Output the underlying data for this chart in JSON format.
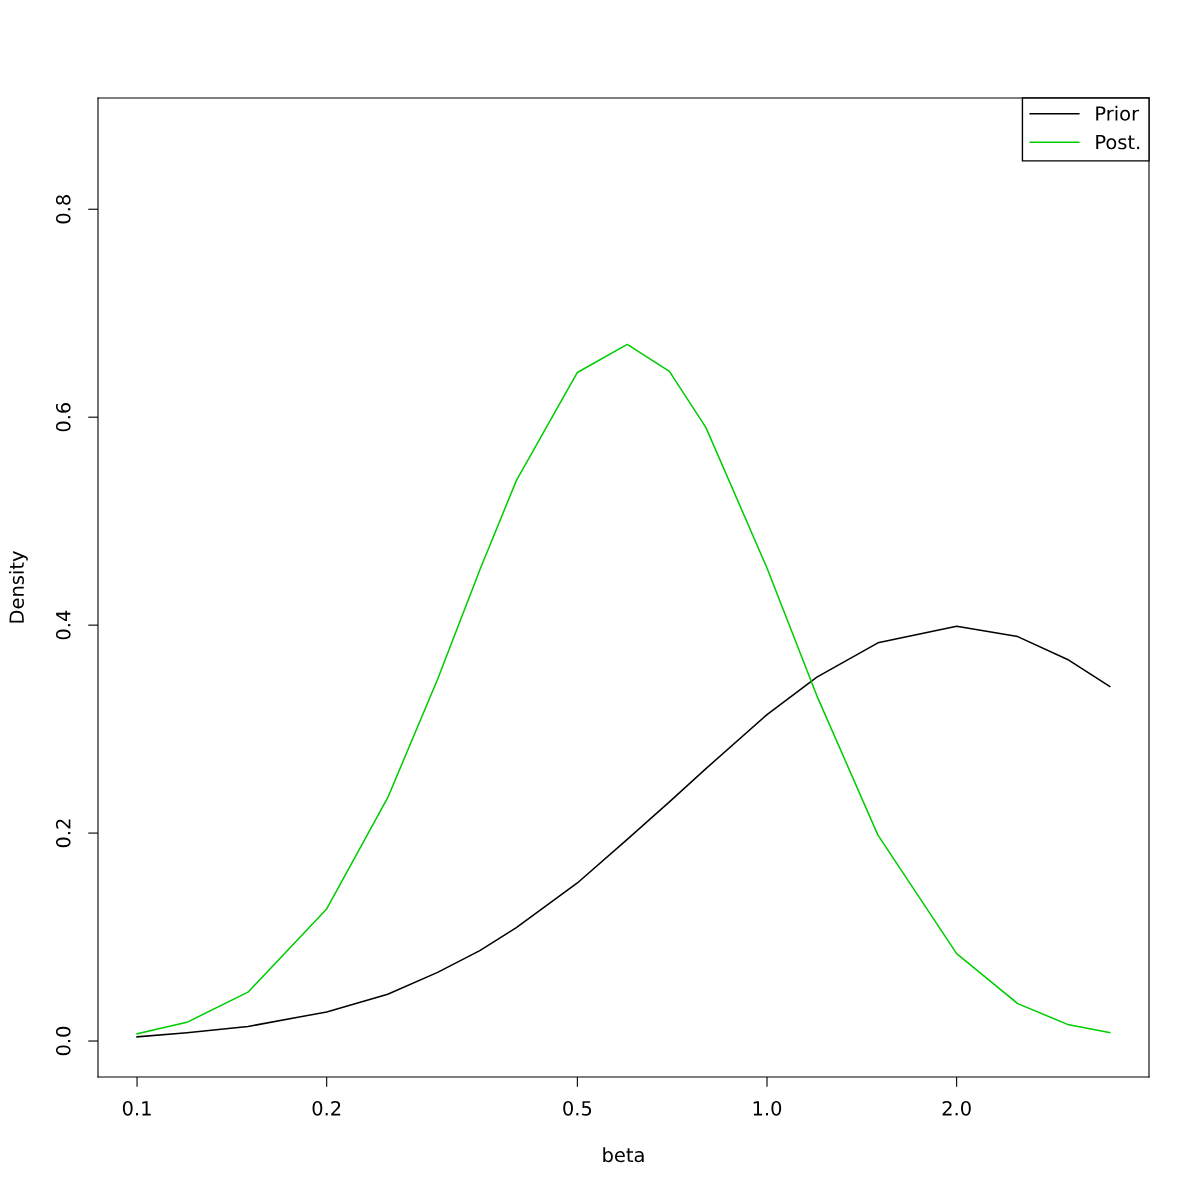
{
  "chart_data": {
    "type": "line",
    "xlabel": "beta",
    "ylabel": "Density",
    "log": "x",
    "x": [
      0.1,
      0.12,
      0.15,
      0.2,
      0.25,
      0.3,
      0.35,
      0.4,
      0.5,
      0.6,
      0.7,
      0.8,
      1.0,
      1.2,
      1.5,
      2.0,
      2.5,
      3.0,
      3.5
    ],
    "series": [
      {
        "name": "Prior",
        "color": "#000000",
        "values": [
          0.004,
          0.008,
          0.014,
          0.028,
          0.045,
          0.066,
          0.087,
          0.109,
          0.152,
          0.194,
          0.23,
          0.262,
          0.314,
          0.35,
          0.383,
          0.399,
          0.389,
          0.367,
          0.341
        ]
      },
      {
        "name": "Post.",
        "color": "#00cd00",
        "values": [
          0.007,
          0.018,
          0.047,
          0.127,
          0.234,
          0.348,
          0.453,
          0.539,
          0.643,
          0.67,
          0.644,
          0.59,
          0.455,
          0.332,
          0.198,
          0.084,
          0.036,
          0.016,
          0.008
        ]
      }
    ],
    "xlim": [
      0.0867,
      4.04
    ],
    "ylim": [
      -0.0346,
      0.907
    ],
    "xticks": [
      {
        "value": 0.1,
        "label": "0.1"
      },
      {
        "value": 0.2,
        "label": "0.2"
      },
      {
        "value": 0.5,
        "label": "0.5"
      },
      {
        "value": 1.0,
        "label": "1.0"
      },
      {
        "value": 2.0,
        "label": "2.0"
      }
    ],
    "yticks": [
      {
        "value": 0.0,
        "label": "0.0"
      },
      {
        "value": 0.2,
        "label": "0.2"
      },
      {
        "value": 0.4,
        "label": "0.4"
      },
      {
        "value": 0.6,
        "label": "0.6"
      },
      {
        "value": 0.8,
        "label": "0.8"
      }
    ],
    "grid": false,
    "legend": "top right",
    "line_style": "solid",
    "marker": "none"
  }
}
